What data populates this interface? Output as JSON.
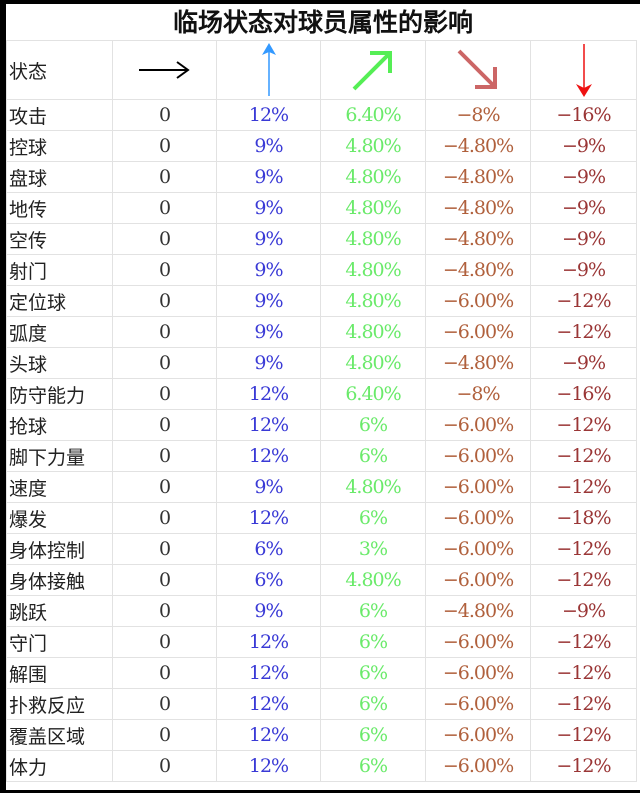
{
  "title": "临场状态对球员属性的影响",
  "header": {
    "label": "状态",
    "arrows": [
      {
        "icon": "arrow-right-icon",
        "color": "#000000"
      },
      {
        "icon": "arrow-up-icon",
        "color": "#3399ff"
      },
      {
        "icon": "arrow-up-right-icon",
        "color": "#55ee55"
      },
      {
        "icon": "arrow-down-right-icon",
        "color": "#cc6666"
      },
      {
        "icon": "arrow-down-icon",
        "color": "#ee1111"
      }
    ]
  },
  "rows": [
    [
      "攻击",
      "0",
      "12%",
      "6.40%",
      "−8%",
      "−16%"
    ],
    [
      "控球",
      "0",
      "9%",
      "4.80%",
      "−4.80%",
      "−9%"
    ],
    [
      "盘球",
      "0",
      "9%",
      "4.80%",
      "−4.80%",
      "−9%"
    ],
    [
      "地传",
      "0",
      "9%",
      "4.80%",
      "−4.80%",
      "−9%"
    ],
    [
      "空传",
      "0",
      "9%",
      "4.80%",
      "−4.80%",
      "−9%"
    ],
    [
      "射门",
      "0",
      "9%",
      "4.80%",
      "−4.80%",
      "−9%"
    ],
    [
      "定位球",
      "0",
      "9%",
      "4.80%",
      "−6.00%",
      "−12%"
    ],
    [
      "弧度",
      "0",
      "9%",
      "4.80%",
      "−6.00%",
      "−12%"
    ],
    [
      "头球",
      "0",
      "9%",
      "4.80%",
      "−4.80%",
      "−9%"
    ],
    [
      "防守能力",
      "0",
      "12%",
      "6.40%",
      "−8%",
      "−16%"
    ],
    [
      "抢球",
      "0",
      "12%",
      "6%",
      "−6.00%",
      "−12%"
    ],
    [
      "脚下力量",
      "0",
      "12%",
      "6%",
      "−6.00%",
      "−12%"
    ],
    [
      "速度",
      "0",
      "9%",
      "4.80%",
      "−6.00%",
      "−12%"
    ],
    [
      "爆发",
      "0",
      "12%",
      "6%",
      "−6.00%",
      "−18%"
    ],
    [
      "身体控制",
      "0",
      "6%",
      "3%",
      "−6.00%",
      "−12%"
    ],
    [
      "身体接触",
      "0",
      "6%",
      "4.80%",
      "−6.00%",
      "−12%"
    ],
    [
      "跳跃",
      "0",
      "9%",
      "6%",
      "−4.80%",
      "−9%"
    ],
    [
      "守门",
      "0",
      "12%",
      "6%",
      "−6.00%",
      "−12%"
    ],
    [
      "解围",
      "0",
      "12%",
      "6%",
      "−6.00%",
      "−12%"
    ],
    [
      "扑救反应",
      "0",
      "12%",
      "6%",
      "−6.00%",
      "−12%"
    ],
    [
      "覆盖区域",
      "0",
      "12%",
      "6%",
      "−6.00%",
      "−12%"
    ],
    [
      "体力",
      "0",
      "12%",
      "6%",
      "−6.00%",
      "−12%"
    ]
  ]
}
